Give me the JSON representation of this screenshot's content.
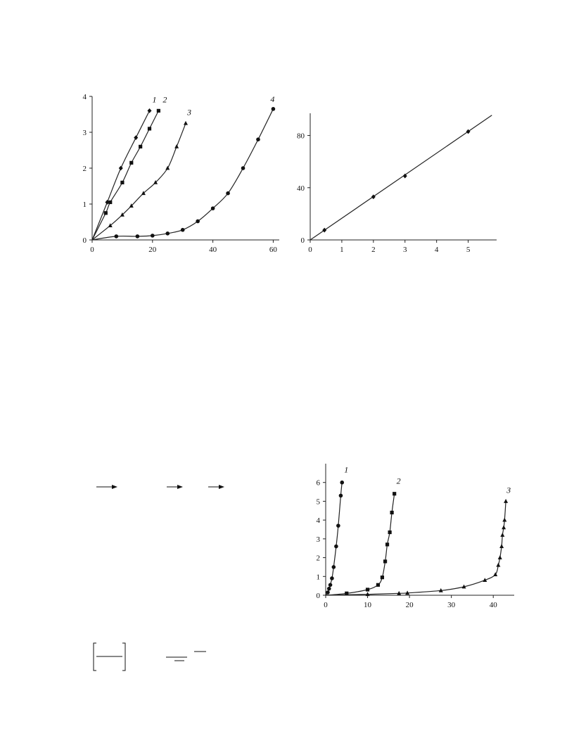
{
  "chart_data": [
    {
      "type": "line",
      "xlim": [
        0,
        62
      ],
      "ylim": [
        0,
        4
      ],
      "x_ticks": [
        "0",
        "20",
        "40",
        "60"
      ],
      "y_ticks": [
        "0",
        "1",
        "2",
        "3",
        "4"
      ],
      "grid": false,
      "series": [
        {
          "name": "1",
          "marker": "diamond",
          "x": [
            0,
            5,
            9.5,
            14.5,
            19
          ],
          "y": [
            0,
            1.05,
            2.0,
            2.85,
            3.6
          ]
        },
        {
          "name": "2",
          "marker": "square",
          "x": [
            0,
            4.5,
            6,
            10,
            13,
            16,
            19,
            22
          ],
          "y": [
            0,
            0.75,
            1.05,
            1.6,
            2.15,
            2.6,
            3.1,
            3.6
          ]
        },
        {
          "name": "3",
          "marker": "triangle",
          "x": [
            0,
            6,
            10,
            13,
            17,
            21,
            25,
            28,
            31
          ],
          "y": [
            0,
            0.4,
            0.7,
            0.95,
            1.3,
            1.6,
            2.0,
            2.6,
            3.25
          ]
        },
        {
          "name": "4",
          "marker": "circle",
          "x": [
            0,
            8,
            15,
            20,
            25,
            30,
            35,
            40,
            45,
            50,
            55,
            60
          ],
          "y": [
            0,
            0.1,
            0.1,
            0.12,
            0.18,
            0.28,
            0.52,
            0.88,
            1.3,
            2.0,
            2.8,
            3.65
          ]
        }
      ]
    },
    {
      "type": "line",
      "xlim": [
        0,
        5.9
      ],
      "ylim": [
        0,
        97
      ],
      "x_ticks": [
        "0",
        "1",
        "2",
        "3",
        "4",
        "5"
      ],
      "y_ticks": [
        "0",
        "40",
        "80"
      ],
      "grid": false,
      "series": [
        {
          "marker": "diamond",
          "x": [
            0.45,
            2,
            3,
            5
          ],
          "y": [
            7.5,
            33,
            49,
            83
          ]
        }
      ],
      "fit_line": {
        "x": [
          0,
          5.75
        ],
        "y": [
          0,
          95.5
        ]
      }
    },
    {
      "type": "line",
      "xlim": [
        0,
        45
      ],
      "ylim": [
        0,
        7
      ],
      "x_ticks": [
        "0",
        "10",
        "20",
        "30",
        "40"
      ],
      "y_ticks": [
        "0",
        "1",
        "2",
        "3",
        "4",
        "5",
        "6"
      ],
      "grid": false,
      "series": [
        {
          "name": "1",
          "marker": "circle",
          "x": [
            0,
            0.5,
            0.8,
            1.1,
            1.5,
            1.9,
            2.5,
            3.0,
            3.6,
            3.9
          ],
          "y": [
            0,
            0.15,
            0.35,
            0.55,
            0.9,
            1.5,
            2.6,
            3.7,
            5.3,
            6.0
          ]
        },
        {
          "name": "2",
          "marker": "square",
          "x": [
            0,
            5,
            10,
            12.5,
            13.5,
            14.2,
            14.7,
            15.3,
            15.8,
            16.4
          ],
          "y": [
            0,
            0.1,
            0.3,
            0.55,
            0.95,
            1.8,
            2.7,
            3.35,
            4.4,
            5.4
          ]
        },
        {
          "name": "3",
          "marker": "triangle",
          "x": [
            0,
            10,
            17.5,
            19.5,
            27.5,
            33,
            38,
            40.5,
            41.2,
            41.6,
            42,
            42.2,
            42.5,
            42.7,
            43
          ],
          "y": [
            0,
            0.05,
            0.1,
            0.12,
            0.25,
            0.45,
            0.8,
            1.1,
            1.6,
            2.0,
            2.6,
            3.2,
            3.6,
            4.0,
            5.0
          ]
        }
      ]
    }
  ]
}
